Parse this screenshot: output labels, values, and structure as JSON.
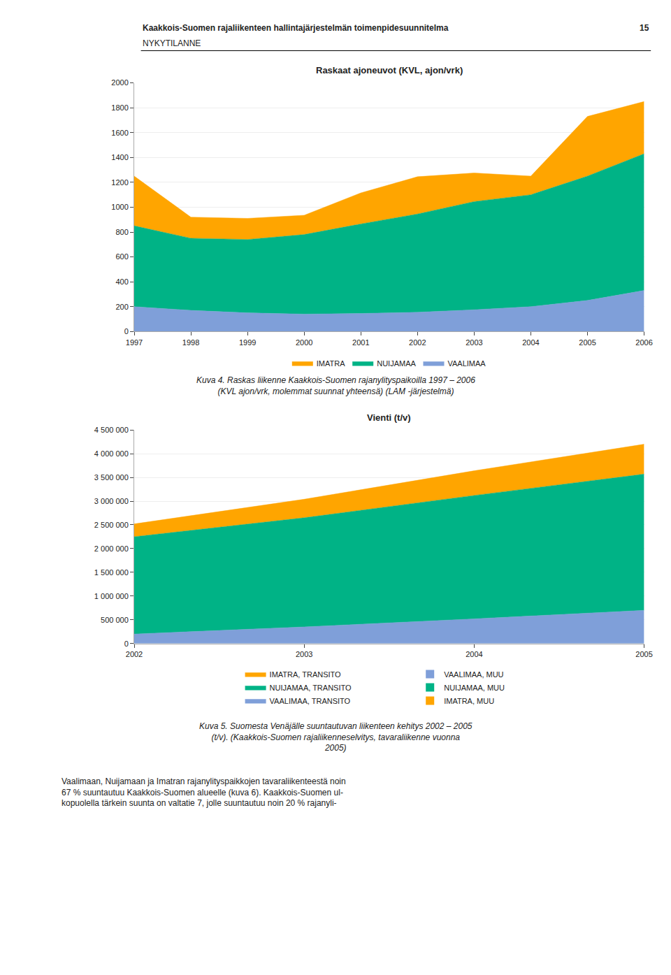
{
  "header": {
    "title": "Kaakkois-Suomen rajaliikenteen hallintajärjestelmän toimenpidesuunnitelma",
    "subtitle": "NYKYTILANNE",
    "page": "15"
  },
  "body_text": "Vaalimaan, Nuijamaan ja Imatran rajanylityspaikkojen tavaraliikenteestä noin\n67 % suuntautuu Kaakkois-Suomen alueelle (kuva 6). Kaakkois-Suomen ul-\nkopuolella tärkein suunta on valtatie 7, jolle suuntautuu noin 20 % rajanyli-",
  "chart_data": [
    {
      "type": "area",
      "stacked": true,
      "title": "Raskaat ajoneuvot (KVL, ajon/vrk)",
      "x": [
        1997,
        1998,
        1999,
        2000,
        2001,
        2002,
        2003,
        2004,
        2005,
        2006
      ],
      "series": [
        {
          "name": "VAALIMAA",
          "color": "#7F9FD9",
          "values": [
            200,
            170,
            150,
            140,
            145,
            155,
            175,
            200,
            250,
            330
          ]
        },
        {
          "name": "NUIJAMAA",
          "color": "#00B386",
          "values": [
            650,
            580,
            590,
            640,
            720,
            790,
            870,
            900,
            1000,
            1100
          ]
        },
        {
          "name": "IMATRA",
          "color": "#FFA500",
          "values": [
            400,
            170,
            170,
            155,
            250,
            300,
            230,
            150,
            480,
            420
          ]
        }
      ],
      "xlim": [
        1997,
        2006
      ],
      "xticks": [
        1997,
        1998,
        1999,
        2000,
        2001,
        2002,
        2003,
        2004,
        2005,
        2006
      ],
      "ylim": [
        0,
        2000
      ],
      "yticks": [
        0,
        200,
        400,
        600,
        800,
        1000,
        1200,
        1400,
        1600,
        1800,
        2000
      ],
      "grid": "y",
      "legend": "bottom",
      "annotations": [
        "Kuva 4. Raskas liikenne Kaakkois-Suomen rajanylityspaikoilla 1997 – 2006\n(KVL ajon/vrk, molemmat suunnat yhteensä) (LAM -järjestelmä)"
      ]
    },
    {
      "type": "area",
      "stacked": true,
      "title": "Vienti (t/v)",
      "x": [
        2002,
        2003,
        2004,
        2005
      ],
      "series": [
        {
          "name": "VAALIMAA, TRANSITO",
          "color": "#7F9FD9",
          "values": [
            200000,
            350000,
            520000,
            700000
          ]
        },
        {
          "name": "NUIJAMAA, TRANSITO",
          "color": "#00B386",
          "values": [
            2050000,
            2300000,
            2600000,
            2870000
          ]
        },
        {
          "name": "IMATRA, TRANSITO",
          "color": "#FFA500",
          "values": [
            270000,
            390000,
            520000,
            630000
          ]
        }
      ],
      "legend_entries": [
        {
          "name": "VAALIMAA, MUU",
          "color": "#7F9FD9"
        },
        {
          "name": "NUIJAMAA, MUU",
          "color": "#00B386"
        },
        {
          "name": "IMATRA, MUU",
          "color": "#FFA500"
        }
      ],
      "xlim": [
        2002,
        2005
      ],
      "xticks": [
        2002,
        2003,
        2004,
        2005
      ],
      "ylim": [
        0,
        4500000
      ],
      "yticks": [
        0,
        {
          "value": 500000,
          "label": "500 000"
        },
        {
          "value": 1000000,
          "label": "1 000 000"
        },
        {
          "value": 1500000,
          "label": "1 500 000"
        },
        {
          "value": 2000000,
          "label": "2 000 000"
        },
        {
          "value": 2500000,
          "label": "2 500 000"
        },
        {
          "value": 3000000,
          "label": "3 000 000"
        },
        {
          "value": 3500000,
          "label": "3 500 000"
        },
        {
          "value": 4000000,
          "label": "4 000 000"
        },
        {
          "value": 4500000,
          "label": "4 500 000"
        }
      ],
      "grid": "y",
      "legend": "bottom",
      "annotations": [
        "Kuva 5. Suomesta Venäjälle suuntautuvan liikenteen kehitys 2002 – 2005\n(t/v). (Kaakkois-Suomen rajaliikenneselvitys, tavaraliikenne vuonna\n2005)"
      ]
    }
  ]
}
